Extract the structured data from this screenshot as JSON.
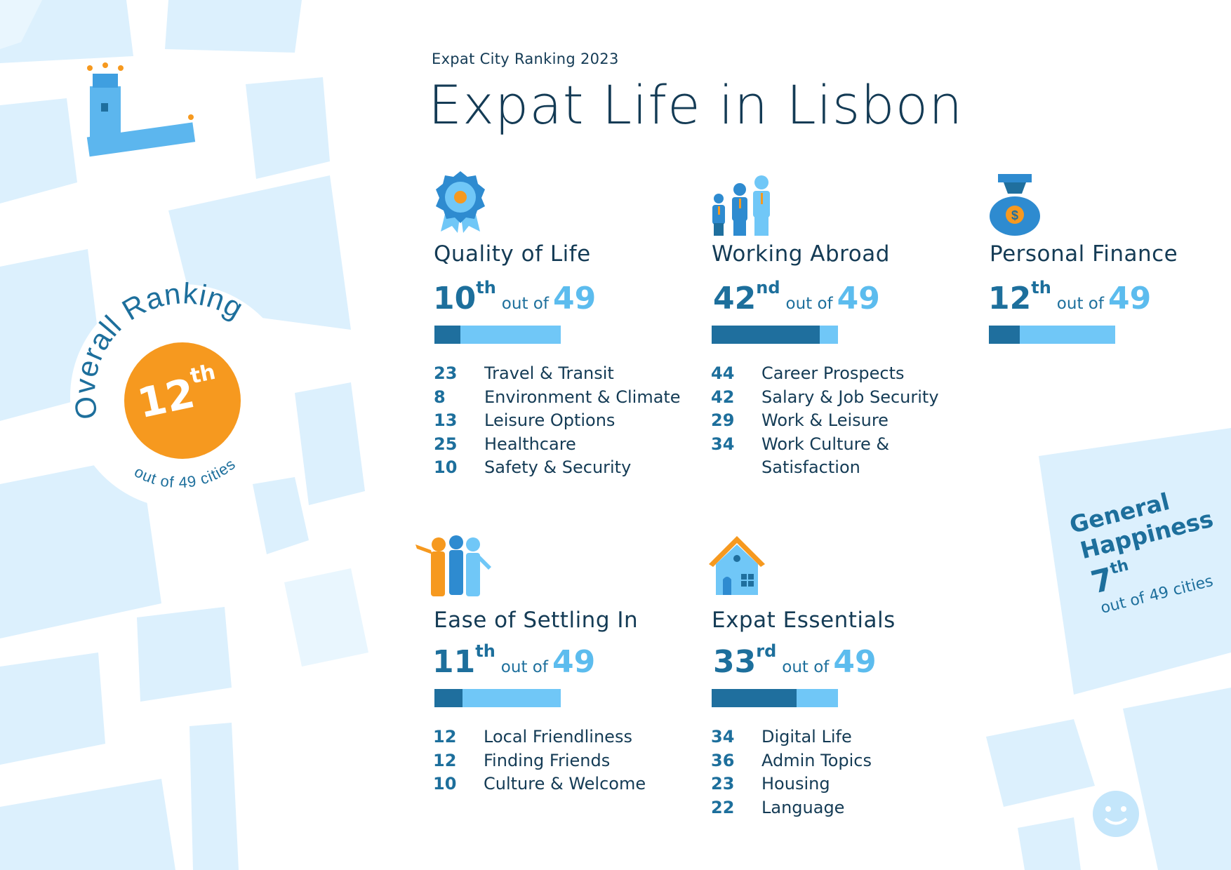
{
  "header": {
    "kicker": "Expat City Ranking 2023",
    "title": "Expat Life in Lisbon"
  },
  "overall": {
    "label": "Overall Ranking",
    "rank": "12",
    "suffix": "th",
    "caption": "out of 49 cities",
    "color": "#f6991f"
  },
  "general_happiness": {
    "line1": "General",
    "line2": "Happiness",
    "rank": "7",
    "suffix": "th",
    "caption": "out of 49 cities"
  },
  "categories": [
    {
      "name": "Quality of Life",
      "rank": "10",
      "suffix": "th",
      "out_of": "out of",
      "total": "49",
      "rank_value": 10,
      "total_value": 49,
      "subs": [
        {
          "n": "23",
          "label": "Travel & Transit"
        },
        {
          "n": "8",
          "label": "Environment & Climate"
        },
        {
          "n": "13",
          "label": "Leisure Options"
        },
        {
          "n": "25",
          "label": "Healthcare"
        },
        {
          "n": "10",
          "label": "Safety & Security"
        }
      ]
    },
    {
      "name": "Working Abroad",
      "rank": "42",
      "suffix": "nd",
      "out_of": "out of",
      "total": "49",
      "rank_value": 42,
      "total_value": 49,
      "subs": [
        {
          "n": "44",
          "label": "Career Prospects"
        },
        {
          "n": "42",
          "label": "Salary & Job Security"
        },
        {
          "n": "29",
          "label": "Work & Leisure"
        },
        {
          "n": "34",
          "label": "Work Culture &"
        },
        {
          "n": "",
          "label": "Satisfaction"
        }
      ]
    },
    {
      "name": "Personal Finance",
      "rank": "12",
      "suffix": "th",
      "out_of": "out of",
      "total": "49",
      "rank_value": 12,
      "total_value": 49,
      "subs": []
    },
    {
      "name": "Ease of Settling In",
      "rank": "11",
      "suffix": "th",
      "out_of": "out of",
      "total": "49",
      "rank_value": 11,
      "total_value": 49,
      "subs": [
        {
          "n": "12",
          "label": "Local Friendliness"
        },
        {
          "n": "12",
          "label": "Finding Friends"
        },
        {
          "n": "10",
          "label": "Culture & Welcome"
        }
      ]
    },
    {
      "name": "Expat Essentials",
      "rank": "33",
      "suffix": "rd",
      "out_of": "out of",
      "total": "49",
      "rank_value": 33,
      "total_value": 49,
      "subs": [
        {
          "n": "34",
          "label": "Digital Life"
        },
        {
          "n": "36",
          "label": "Admin Topics"
        },
        {
          "n": "23",
          "label": "Housing"
        },
        {
          "n": "22",
          "label": "Language"
        }
      ]
    }
  ],
  "icons": {
    "quality": "rosette-badge-icon",
    "working": "business-people-icon",
    "finance": "money-bag-icon",
    "settling": "group-of-friends-icon",
    "essentials": "house-icon",
    "landmark": "belem-tower-icon",
    "bird": "bird-logo-icon",
    "smiley": "smiley-face-icon"
  },
  "colors": {
    "dark_blue": "#1f6f9e",
    "light_blue": "#70c7f7",
    "orange": "#f6991f",
    "text": "#143b55"
  }
}
